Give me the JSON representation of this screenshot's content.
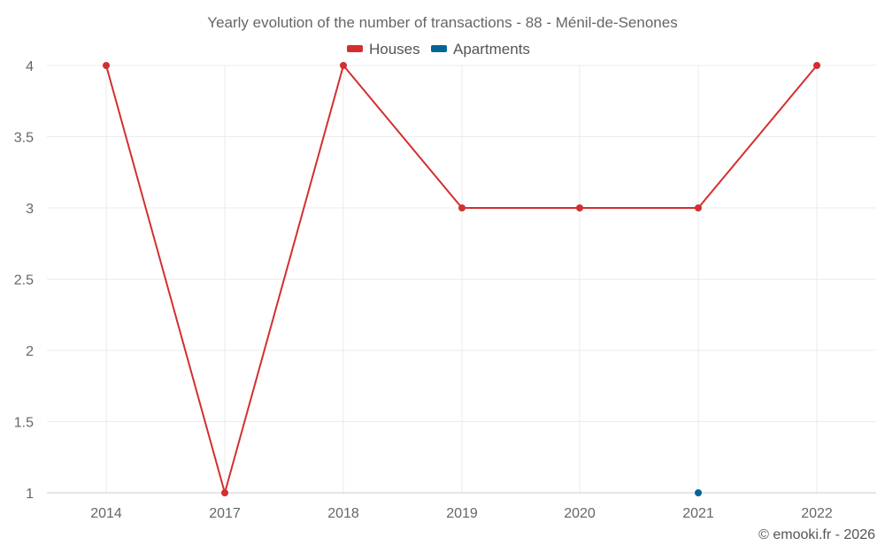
{
  "chart_data": {
    "type": "line",
    "title": "Yearly evolution of the number of transactions - 88 - Ménil-de-Senones",
    "categories": [
      "2014",
      "2017",
      "2018",
      "2019",
      "2020",
      "2021",
      "2022"
    ],
    "series": [
      {
        "name": "Houses",
        "color": "#d32f2f",
        "values": [
          4,
          1,
          4,
          3,
          3,
          3,
          4
        ]
      },
      {
        "name": "Apartments",
        "color": "#006699",
        "values": [
          null,
          null,
          null,
          null,
          null,
          1,
          null
        ]
      }
    ],
    "y_ticks": [
      "1",
      "1.5",
      "2",
      "2.5",
      "3",
      "3.5",
      "4"
    ],
    "ylim": [
      1,
      4
    ],
    "grid": true,
    "legend_position": "top-center",
    "credit": "© emooki.fr - 2026"
  }
}
